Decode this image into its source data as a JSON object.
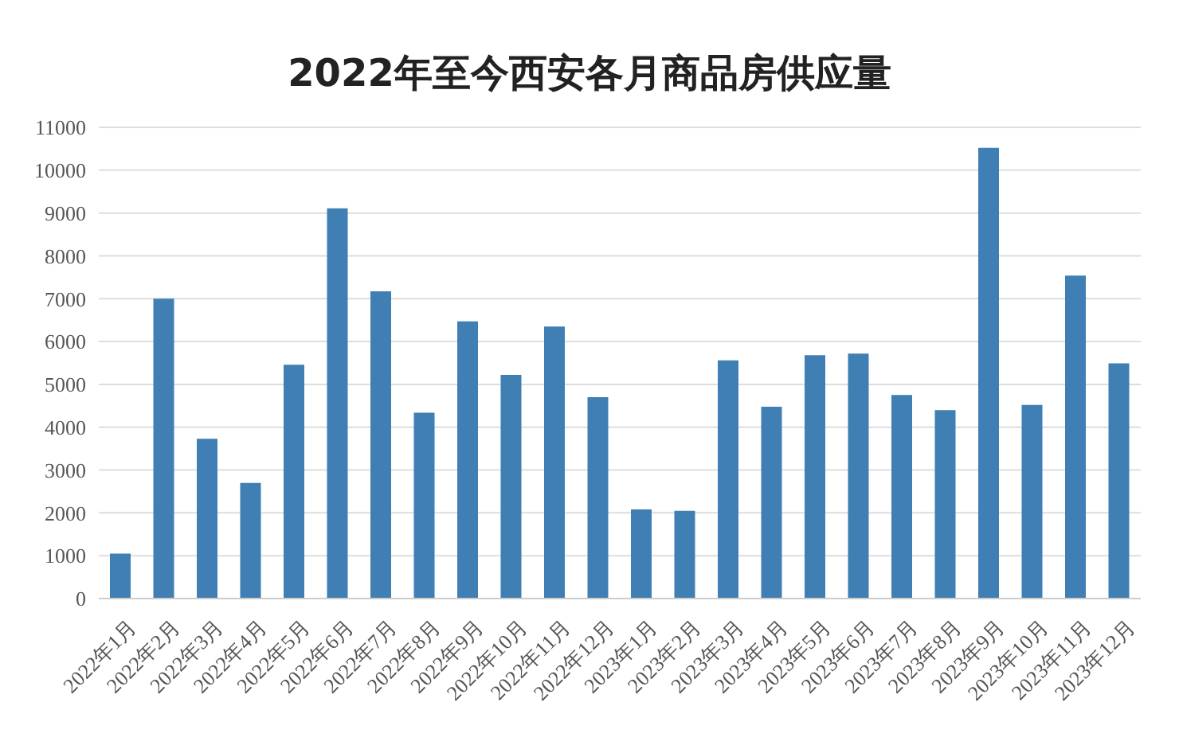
{
  "chart_data": {
    "type": "bar",
    "title": "2022年至今西安各月商品房供应量",
    "categories": [
      "2022年1月",
      "2022年2月",
      "2022年3月",
      "2022年4月",
      "2022年5月",
      "2022年6月",
      "2022年7月",
      "2022年8月",
      "2022年9月",
      "2022年10月",
      "2022年11月",
      "2022年12月",
      "2023年1月",
      "2023年2月",
      "2023年3月",
      "2023年4月",
      "2023年5月",
      "2023年6月",
      "2023年7月",
      "2023年8月",
      "2023年9月",
      "2023年10月",
      "2023年11月",
      "2023年12月"
    ],
    "values": [
      1050,
      7000,
      3730,
      2700,
      5460,
      9110,
      7170,
      4340,
      6470,
      5220,
      6350,
      4700,
      2080,
      2050,
      5560,
      4480,
      5680,
      5720,
      4750,
      4400,
      10520,
      4520,
      7540,
      5490
    ],
    "color": "#3f7fb3",
    "ylim": [
      0,
      11000
    ],
    "yticks": [
      0,
      1000,
      2000,
      3000,
      4000,
      5000,
      6000,
      7000,
      8000,
      9000,
      10000,
      11000
    ],
    "grid": "y",
    "legend": false
  }
}
